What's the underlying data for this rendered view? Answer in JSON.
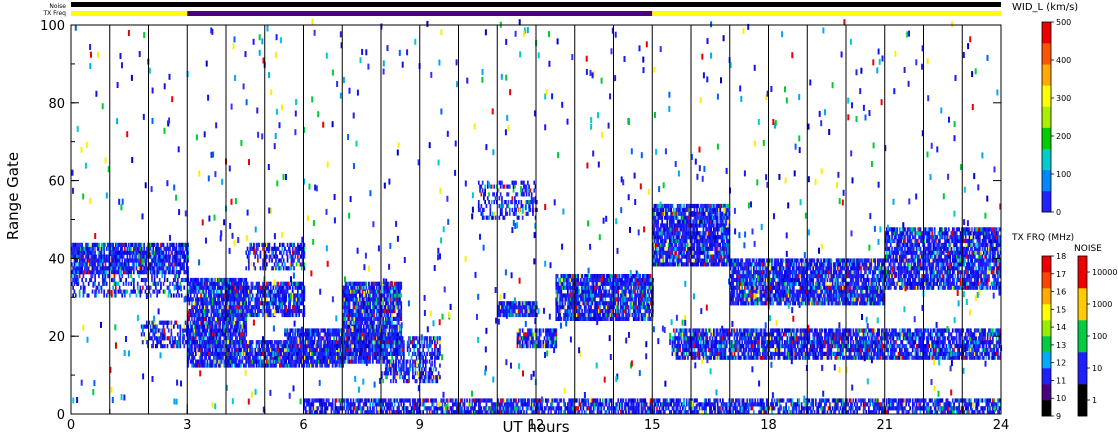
{
  "header": {
    "noise_label": "Noise",
    "txfreq_label": "TX Freq"
  },
  "chart_data": {
    "type": "heatmap",
    "title": "",
    "xlabel": "UT hours",
    "ylabel": "Range Gate",
    "xlim": [
      0,
      24
    ],
    "ylim": [
      0,
      100
    ],
    "x_ticks": [
      "0",
      "3",
      "6",
      "9",
      "12",
      "15",
      "18",
      "21",
      "24"
    ],
    "y_ticks": [
      "0",
      "20",
      "40",
      "60",
      "80",
      "100"
    ],
    "hour_grid": true,
    "tx_freq_segments": [
      {
        "start": 0,
        "end": 3,
        "color": "#ffff00"
      },
      {
        "start": 3,
        "end": 15,
        "color": "#4b0082"
      },
      {
        "start": 15,
        "end": 24,
        "color": "#ffff00"
      }
    ],
    "noise_bar_color": "#000000",
    "echo_bands": [
      {
        "t0": 0.0,
        "t1": 3.0,
        "g0": 36,
        "g1": 44,
        "density": 0.85
      },
      {
        "t0": 0.0,
        "t1": 3.0,
        "g0": 30,
        "g1": 36,
        "density": 0.4
      },
      {
        "t0": 1.8,
        "t1": 3.0,
        "g0": 17,
        "g1": 24,
        "density": 0.5
      },
      {
        "t0": 3.0,
        "t1": 4.5,
        "g0": 18,
        "g1": 35,
        "density": 0.85
      },
      {
        "t0": 4.0,
        "t1": 6.0,
        "g0": 25,
        "g1": 34,
        "density": 0.75
      },
      {
        "t0": 3.0,
        "t1": 7.0,
        "g0": 12,
        "g1": 19,
        "density": 0.85
      },
      {
        "t0": 5.5,
        "t1": 8.0,
        "g0": 13,
        "g1": 22,
        "density": 0.8
      },
      {
        "t0": 7.0,
        "t1": 8.5,
        "g0": 15,
        "g1": 34,
        "density": 0.85
      },
      {
        "t0": 8.0,
        "t1": 9.5,
        "g0": 8,
        "g1": 20,
        "density": 0.55
      },
      {
        "t0": 6.0,
        "t1": 24.0,
        "g0": 0,
        "g1": 4,
        "density": 0.7
      },
      {
        "t0": 4.5,
        "t1": 6.0,
        "g0": 37,
        "g1": 44,
        "density": 0.5
      },
      {
        "t0": 11.0,
        "t1": 12.0,
        "g0": 25,
        "g1": 29,
        "density": 0.9
      },
      {
        "t0": 11.5,
        "t1": 12.5,
        "g0": 17,
        "g1": 22,
        "density": 0.7
      },
      {
        "t0": 12.5,
        "t1": 15.0,
        "g0": 24,
        "g1": 36,
        "density": 0.85
      },
      {
        "t0": 15.0,
        "t1": 17.0,
        "g0": 38,
        "g1": 54,
        "density": 0.85
      },
      {
        "t0": 17.0,
        "t1": 21.0,
        "g0": 28,
        "g1": 40,
        "density": 0.85
      },
      {
        "t0": 21.0,
        "t1": 24.0,
        "g0": 32,
        "g1": 48,
        "density": 0.8
      },
      {
        "t0": 15.5,
        "t1": 24.0,
        "g0": 14,
        "g1": 22,
        "density": 0.8
      },
      {
        "t0": 10.5,
        "t1": 12.0,
        "g0": 50,
        "g1": 60,
        "density": 0.35
      }
    ],
    "colorbars": {
      "wid": {
        "label": "WID_L (km/s)",
        "ticks": [
          "0",
          "100",
          "200",
          "300",
          "400",
          "500"
        ],
        "colors": [
          "#2222ff",
          "#0088ff",
          "#00cccc",
          "#00cc00",
          "#aaee00",
          "#ffff00",
          "#ffaa00",
          "#ff5500",
          "#ee0000"
        ]
      },
      "txfreq": {
        "label": "TX FRQ (MHz)",
        "ticks": [
          "9",
          "10",
          "11",
          "12",
          "13",
          "14",
          "15",
          "16",
          "17",
          "18"
        ],
        "colors": [
          "#000000",
          "#4b0082",
          "#2020ff",
          "#00aaff",
          "#00cc44",
          "#99ee00",
          "#ffff00",
          "#ffaa00",
          "#ff4400",
          "#ee0000"
        ]
      },
      "noise": {
        "label": "NOISE",
        "ticks": [
          "1",
          "10",
          "100",
          "1000",
          "10000"
        ],
        "colors": [
          "#000000",
          "#2020ff",
          "#00cc44",
          "#ffcc00",
          "#ee0000"
        ]
      }
    }
  }
}
